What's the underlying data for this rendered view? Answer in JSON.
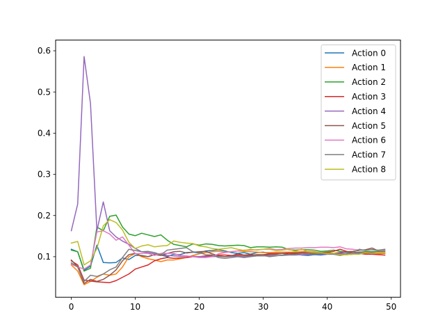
{
  "chart_data": {
    "type": "line",
    "title": "",
    "xlabel": "",
    "ylabel": "",
    "xlim": [
      -2.45,
      51.45
    ],
    "ylim": [
      0.0015,
      0.626
    ],
    "xticks": [
      0,
      10,
      20,
      30,
      40,
      50
    ],
    "yticks": [
      0.1,
      0.2,
      0.3,
      0.4,
      0.5,
      0.6
    ],
    "xtick_labels": [
      "0",
      "10",
      "20",
      "30",
      "40",
      "50"
    ],
    "ytick_labels": [
      "0.1",
      "0.2",
      "0.3",
      "0.4",
      "0.5",
      "0.6"
    ],
    "grid": false,
    "legend_position": "top-right",
    "x": [
      0,
      1,
      2,
      3,
      4,
      5,
      6,
      7,
      8,
      9,
      10,
      11,
      12,
      13,
      14,
      15,
      16,
      17,
      18,
      19,
      20,
      21,
      22,
      23,
      24,
      25,
      26,
      27,
      28,
      29,
      30,
      31,
      32,
      33,
      34,
      35,
      36,
      37,
      38,
      39,
      40,
      41,
      42,
      43,
      44,
      45,
      46,
      47,
      48,
      49
    ],
    "series": [
      {
        "name": "Action 0",
        "color": "#1f77b4",
        "values": [
          0.118,
          0.112,
          0.067,
          0.077,
          0.128,
          0.086,
          0.085,
          0.086,
          0.097,
          0.093,
          0.103,
          0.103,
          0.1,
          0.105,
          0.104,
          0.1,
          0.106,
          0.105,
          0.11,
          0.111,
          0.109,
          0.114,
          0.115,
          0.117,
          0.114,
          0.11,
          0.108,
          0.11,
          0.106,
          0.11,
          0.111,
          0.108,
          0.106,
          0.108,
          0.105,
          0.107,
          0.104,
          0.103,
          0.105,
          0.104,
          0.106,
          0.106,
          0.107,
          0.105,
          0.106,
          0.108,
          0.107,
          0.108,
          0.108,
          0.108
        ]
      },
      {
        "name": "Action 1",
        "color": "#ff7f0e",
        "values": [
          0.08,
          0.065,
          0.032,
          0.04,
          0.05,
          0.058,
          0.055,
          0.058,
          0.075,
          0.1,
          0.108,
          0.1,
          0.095,
          0.092,
          0.088,
          0.092,
          0.092,
          0.095,
          0.098,
          0.103,
          0.107,
          0.11,
          0.112,
          0.113,
          0.111,
          0.112,
          0.114,
          0.113,
          0.112,
          0.111,
          0.11,
          0.11,
          0.111,
          0.111,
          0.111,
          0.111,
          0.112,
          0.113,
          0.112,
          0.11,
          0.106,
          0.108,
          0.105,
          0.105,
          0.107,
          0.108,
          0.108,
          0.108,
          0.107,
          0.108
        ]
      },
      {
        "name": "Action 2",
        "color": "#2ca02c",
        "values": [
          0.116,
          0.112,
          0.065,
          0.072,
          0.172,
          0.163,
          0.198,
          0.201,
          0.172,
          0.155,
          0.151,
          0.157,
          0.153,
          0.149,
          0.153,
          0.14,
          0.13,
          0.127,
          0.124,
          0.131,
          0.128,
          0.131,
          0.13,
          0.127,
          0.126,
          0.127,
          0.128,
          0.127,
          0.122,
          0.124,
          0.124,
          0.123,
          0.124,
          0.123,
          0.117,
          0.116,
          0.117,
          0.117,
          0.116,
          0.113,
          0.114,
          0.116,
          0.113,
          0.111,
          0.11,
          0.111,
          0.112,
          0.112,
          0.113,
          0.113
        ]
      },
      {
        "name": "Action 3",
        "color": "#d62728",
        "values": [
          0.09,
          0.08,
          0.043,
          0.041,
          0.039,
          0.038,
          0.037,
          0.042,
          0.05,
          0.058,
          0.07,
          0.075,
          0.08,
          0.09,
          0.095,
          0.098,
          0.096,
          0.097,
          0.098,
          0.1,
          0.1,
          0.102,
          0.102,
          0.104,
          0.104,
          0.103,
          0.104,
          0.103,
          0.103,
          0.105,
          0.105,
          0.107,
          0.108,
          0.108,
          0.109,
          0.109,
          0.11,
          0.11,
          0.11,
          0.11,
          0.111,
          0.113,
          0.118,
          0.113,
          0.11,
          0.108,
          0.106,
          0.106,
          0.105,
          0.104
        ]
      },
      {
        "name": "Action 4",
        "color": "#9467bd",
        "values": [
          0.163,
          0.228,
          0.586,
          0.472,
          0.163,
          0.233,
          0.163,
          0.148,
          0.138,
          0.13,
          0.12,
          0.112,
          0.11,
          0.107,
          0.105,
          0.103,
          0.102,
          0.101,
          0.101,
          0.101,
          0.1,
          0.1,
          0.1,
          0.101,
          0.1,
          0.101,
          0.101,
          0.1,
          0.101,
          0.102,
          0.102,
          0.102,
          0.103,
          0.103,
          0.104,
          0.104,
          0.105,
          0.105,
          0.106,
          0.106,
          0.107,
          0.107,
          0.108,
          0.108,
          0.109,
          0.109,
          0.11,
          0.11,
          0.11,
          0.11
        ]
      },
      {
        "name": "Action 5",
        "color": "#8c564b",
        "values": [
          0.092,
          0.075,
          0.035,
          0.045,
          0.04,
          0.045,
          0.055,
          0.068,
          0.09,
          0.105,
          0.108,
          0.102,
          0.1,
          0.105,
          0.103,
          0.108,
          0.112,
          0.113,
          0.109,
          0.111,
          0.112,
          0.113,
          0.107,
          0.102,
          0.1,
          0.102,
          0.107,
          0.104,
          0.105,
          0.104,
          0.104,
          0.105,
          0.106,
          0.108,
          0.106,
          0.108,
          0.108,
          0.107,
          0.108,
          0.108,
          0.11,
          0.108,
          0.11,
          0.112,
          0.113,
          0.115,
          0.117,
          0.121,
          0.114,
          0.116
        ]
      },
      {
        "name": "Action 6",
        "color": "#e377c2",
        "values": [
          0.082,
          0.075,
          0.07,
          0.08,
          0.16,
          0.163,
          0.155,
          0.14,
          0.148,
          0.128,
          0.107,
          0.108,
          0.108,
          0.103,
          0.108,
          0.108,
          0.108,
          0.103,
          0.102,
          0.1,
          0.098,
          0.098,
          0.1,
          0.107,
          0.11,
          0.112,
          0.114,
          0.116,
          0.116,
          0.117,
          0.118,
          0.12,
          0.117,
          0.118,
          0.12,
          0.121,
          0.121,
          0.122,
          0.122,
          0.123,
          0.123,
          0.122,
          0.124,
          0.119,
          0.118,
          0.116,
          0.115,
          0.117,
          0.115,
          0.115
        ]
      },
      {
        "name": "Action 7",
        "color": "#7f7f7f",
        "values": [
          0.085,
          0.075,
          0.04,
          0.055,
          0.052,
          0.058,
          0.068,
          0.075,
          0.098,
          0.118,
          0.115,
          0.112,
          0.113,
          0.11,
          0.105,
          0.116,
          0.118,
          0.12,
          0.122,
          0.112,
          0.11,
          0.105,
          0.104,
          0.098,
          0.096,
          0.098,
          0.1,
          0.098,
          0.1,
          0.102,
          0.103,
          0.1,
          0.102,
          0.104,
          0.105,
          0.105,
          0.108,
          0.107,
          0.106,
          0.108,
          0.107,
          0.106,
          0.103,
          0.106,
          0.11,
          0.118,
          0.115,
          0.117,
          0.116,
          0.118
        ]
      },
      {
        "name": "Action 8",
        "color": "#bcbd22",
        "values": [
          0.133,
          0.137,
          0.08,
          0.09,
          0.12,
          0.175,
          0.19,
          0.183,
          0.165,
          0.135,
          0.12,
          0.126,
          0.129,
          0.124,
          0.126,
          0.127,
          0.138,
          0.135,
          0.133,
          0.132,
          0.126,
          0.124,
          0.12,
          0.118,
          0.12,
          0.122,
          0.118,
          0.115,
          0.118,
          0.116,
          0.118,
          0.118,
          0.115,
          0.116,
          0.118,
          0.113,
          0.118,
          0.112,
          0.11,
          0.11,
          0.108,
          0.108,
          0.105,
          0.105,
          0.106,
          0.106,
          0.11,
          0.108,
          0.11,
          0.11
        ]
      }
    ]
  }
}
